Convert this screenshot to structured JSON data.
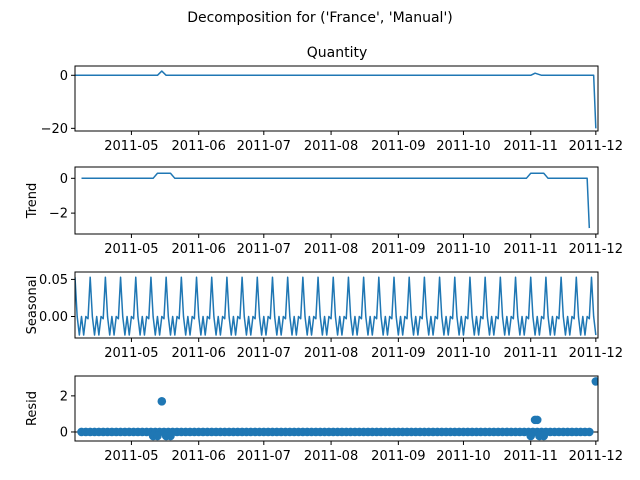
{
  "figure_title": "Decomposition for ('France', 'Manual')",
  "colors": {
    "series": "#1f77b4",
    "axis": "#000000",
    "background": "#ffffff"
  },
  "x_tick_labels": [
    "2011-05",
    "2011-06",
    "2011-07",
    "2011-08",
    "2011-09",
    "2011-10",
    "2011-11",
    "2011-12"
  ],
  "chart_data": [
    {
      "type": "line",
      "title": "Quantity",
      "ylabel": "",
      "xlim": [
        "2011-04-05",
        "2011-12-02"
      ],
      "ylim": [
        -21,
        3.5
      ],
      "yticks": [
        {
          "value": 0,
          "label": "0"
        },
        {
          "value": -20,
          "label": "−20"
        }
      ],
      "points": [
        {
          "x": "2011-04-05",
          "y": 0
        },
        {
          "x": "2011-05-13",
          "y": 0
        },
        {
          "x": "2011-05-15",
          "y": 1.6
        },
        {
          "x": "2011-05-17",
          "y": 0
        },
        {
          "x": "2011-11-01",
          "y": 0
        },
        {
          "x": "2011-11-03",
          "y": 0.8
        },
        {
          "x": "2011-11-06",
          "y": 0
        },
        {
          "x": "2011-11-30",
          "y": 0
        },
        {
          "x": "2011-12-01",
          "y": -20
        }
      ]
    },
    {
      "type": "line",
      "title": "",
      "ylabel": "Trend",
      "xlim": [
        "2011-04-05",
        "2011-12-02"
      ],
      "ylim": [
        -3.2,
        0.65
      ],
      "yticks": [
        {
          "value": 0,
          "label": "0"
        },
        {
          "value": -2,
          "label": "−2"
        }
      ],
      "points": [
        {
          "x": "2011-04-08",
          "y": 0
        },
        {
          "x": "2011-05-11",
          "y": 0
        },
        {
          "x": "2011-05-13",
          "y": 0.29
        },
        {
          "x": "2011-05-19",
          "y": 0.29
        },
        {
          "x": "2011-05-21",
          "y": 0
        },
        {
          "x": "2011-10-30",
          "y": 0
        },
        {
          "x": "2011-11-01",
          "y": 0.29
        },
        {
          "x": "2011-11-07",
          "y": 0.29
        },
        {
          "x": "2011-11-09",
          "y": 0
        },
        {
          "x": "2011-11-27",
          "y": 0
        },
        {
          "x": "2011-11-28",
          "y": -2.86
        }
      ]
    },
    {
      "type": "line",
      "title": "",
      "ylabel": "Seasonal",
      "xlim": [
        "2011-04-05",
        "2011-12-02"
      ],
      "ylim": [
        -0.029,
        0.06
      ],
      "yticks": [
        {
          "value": 0.05,
          "label": "0.05"
        },
        {
          "value": 0,
          "label": "0.00"
        }
      ],
      "periodic": {
        "start": "2011-04-05",
        "end": "2011-12-01",
        "period_days": 7,
        "pattern": [
          0.053,
          0.0,
          -0.025,
          0.0,
          -0.025,
          0.0,
          -0.003
        ]
      }
    },
    {
      "type": "scatter",
      "title": "",
      "ylabel": "Resid",
      "xlim": [
        "2011-04-05",
        "2011-12-02"
      ],
      "ylim": [
        -0.5,
        3.1
      ],
      "yticks": [
        {
          "value": 2,
          "label": "2"
        },
        {
          "value": 0,
          "label": "0"
        }
      ],
      "zero_line": true,
      "baseline": {
        "start": "2011-04-08",
        "end": "2011-11-28",
        "step_days": 2,
        "y": 0
      },
      "points": [
        {
          "x": "2011-05-15",
          "y": 1.7
        },
        {
          "x": "2011-05-11",
          "y": -0.22
        },
        {
          "x": "2011-05-13",
          "y": -0.22
        },
        {
          "x": "2011-05-17",
          "y": -0.22
        },
        {
          "x": "2011-05-19",
          "y": -0.22
        },
        {
          "x": "2011-11-03",
          "y": 0.67
        },
        {
          "x": "2011-11-04",
          "y": 0.67
        },
        {
          "x": "2011-11-01",
          "y": -0.22
        },
        {
          "x": "2011-11-05",
          "y": -0.22
        },
        {
          "x": "2011-11-07",
          "y": -0.22
        },
        {
          "x": "2011-12-01",
          "y": 2.8
        }
      ]
    }
  ]
}
